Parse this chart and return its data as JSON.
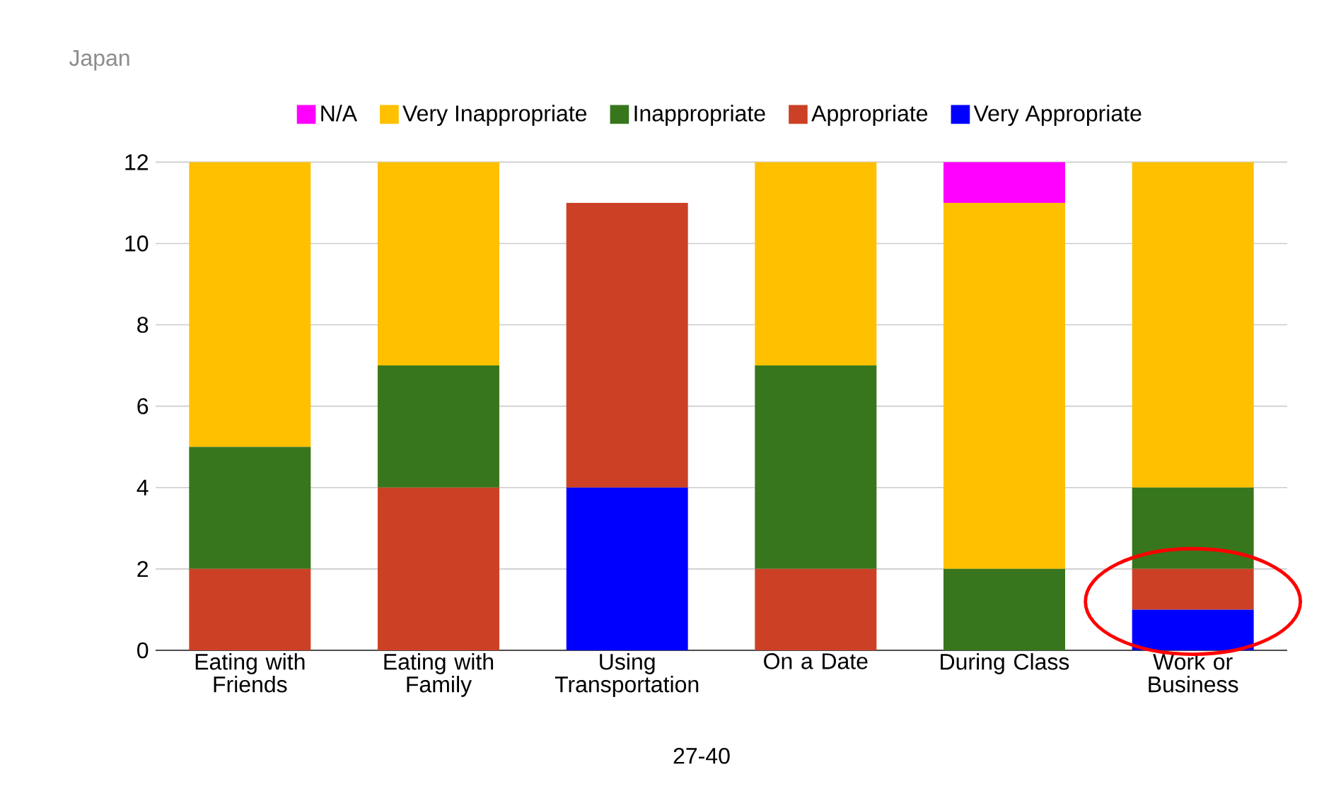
{
  "chart_data": {
    "type": "bar",
    "stacked": true,
    "title": "Japan",
    "categories": [
      "Eating with Friends",
      "Eating with Family",
      "Using Transportation",
      "On a Date",
      "During Class",
      "Work or Business"
    ],
    "series": [
      {
        "name": "Very Appropriate",
        "color": "#0000ff",
        "values": [
          0,
          0,
          4,
          0,
          0,
          1
        ]
      },
      {
        "name": "Appropriate",
        "color": "#cc4125",
        "values": [
          2,
          4,
          7,
          2,
          0,
          1
        ]
      },
      {
        "name": "Inappropriate",
        "color": "#38761d",
        "values": [
          3,
          3,
          0,
          5,
          2,
          2
        ]
      },
      {
        "name": "Very Inappropriate",
        "color": "#ffc000",
        "values": [
          7,
          5,
          0,
          5,
          9,
          8
        ]
      },
      {
        "name": "N/A",
        "color": "#ff00ff",
        "values": [
          0,
          0,
          0,
          0,
          1,
          0
        ]
      }
    ],
    "ylim": [
      0,
      12
    ],
    "yticks": [
      0,
      2,
      4,
      6,
      8,
      10,
      12
    ],
    "grid": "y",
    "legend": "top",
    "annotations": [
      "27-40"
    ]
  }
}
